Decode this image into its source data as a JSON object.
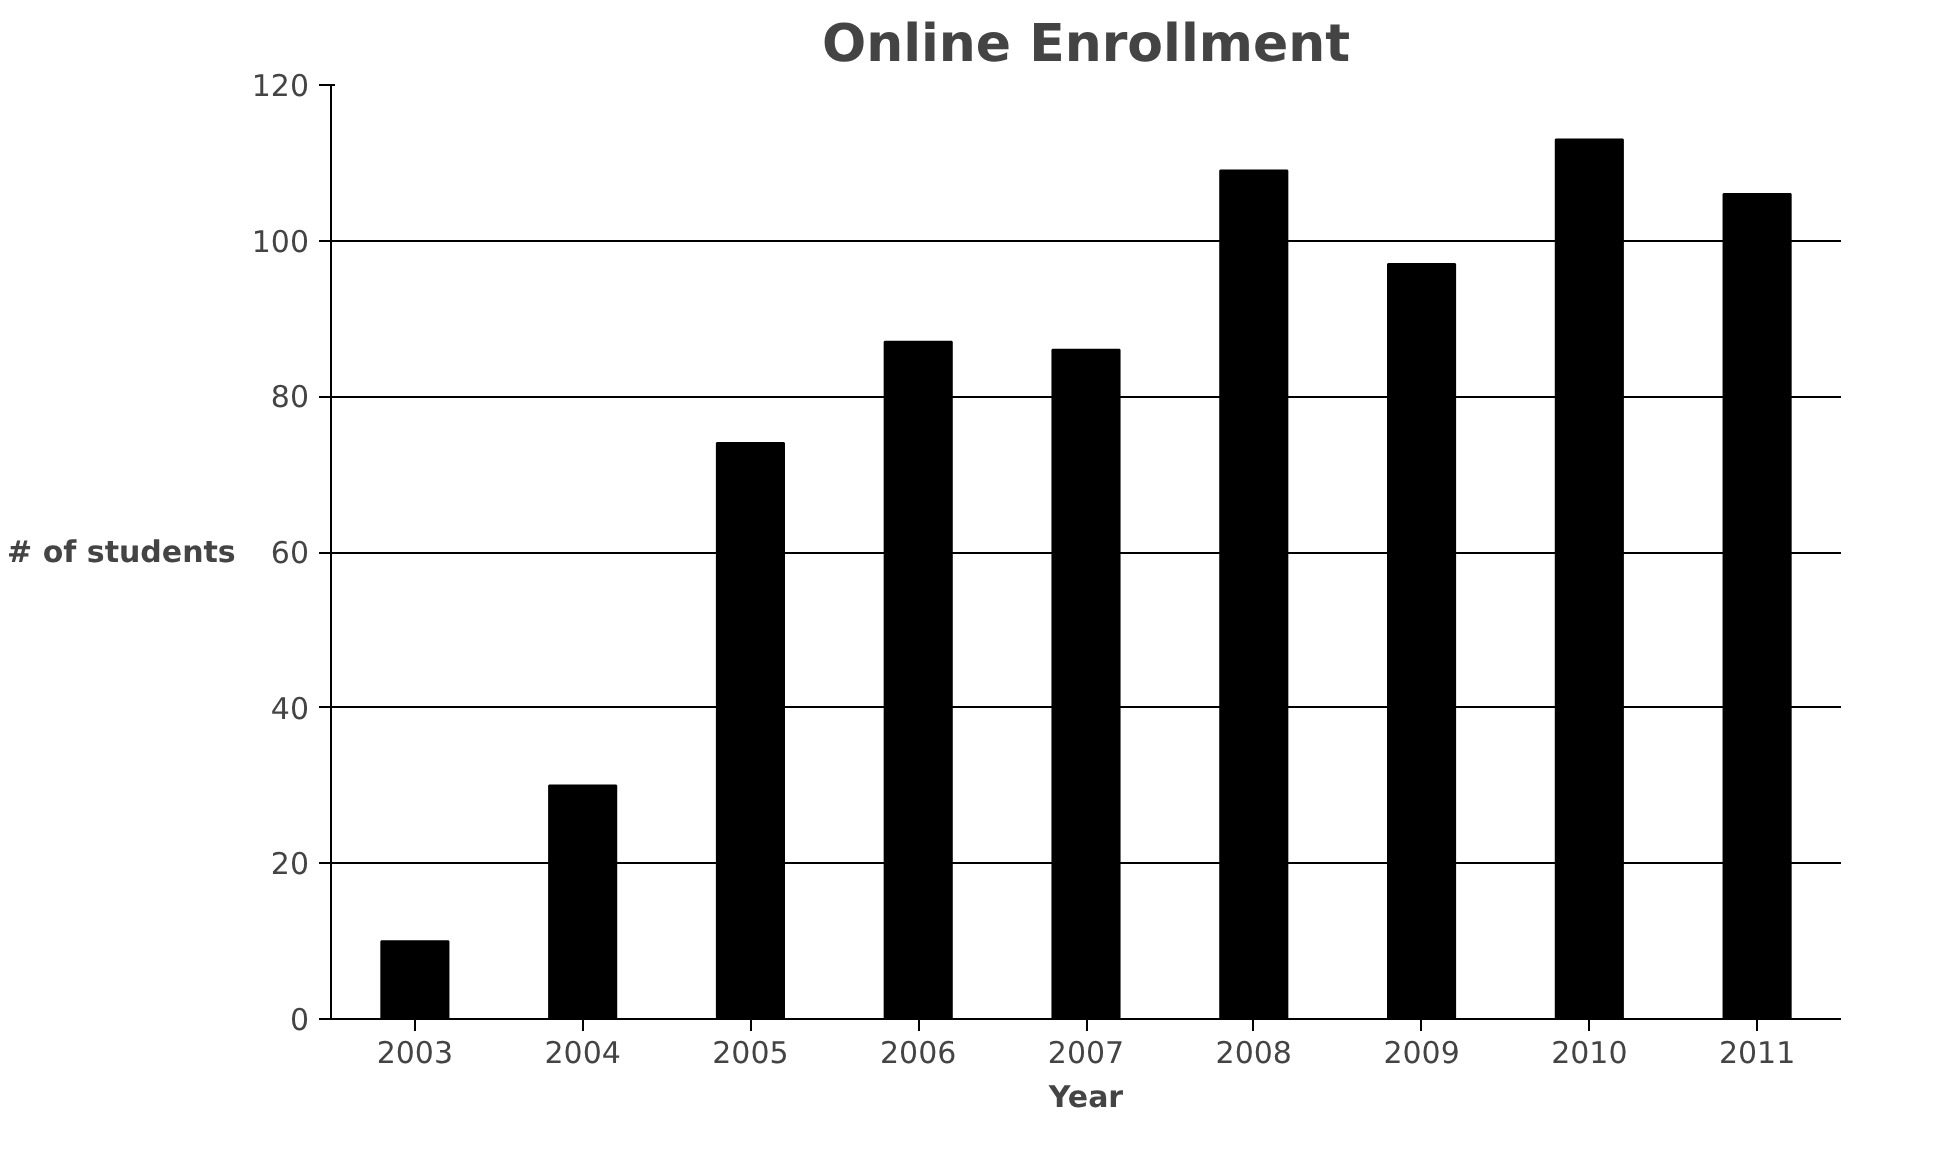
{
  "chart_data": {
    "type": "bar",
    "title": "Online Enrollment",
    "xlabel": "Year",
    "ylabel": "# of students",
    "categories": [
      "2003",
      "2004",
      "2005",
      "2006",
      "2007",
      "2008",
      "2009",
      "2010",
      "2011"
    ],
    "values": [
      10,
      30,
      74,
      87,
      86,
      109,
      97,
      113,
      106
    ],
    "color": "#000000",
    "ylim": [
      0,
      120
    ],
    "yticks": [
      0,
      20,
      40,
      60,
      80,
      100,
      120
    ],
    "grid": "y"
  }
}
